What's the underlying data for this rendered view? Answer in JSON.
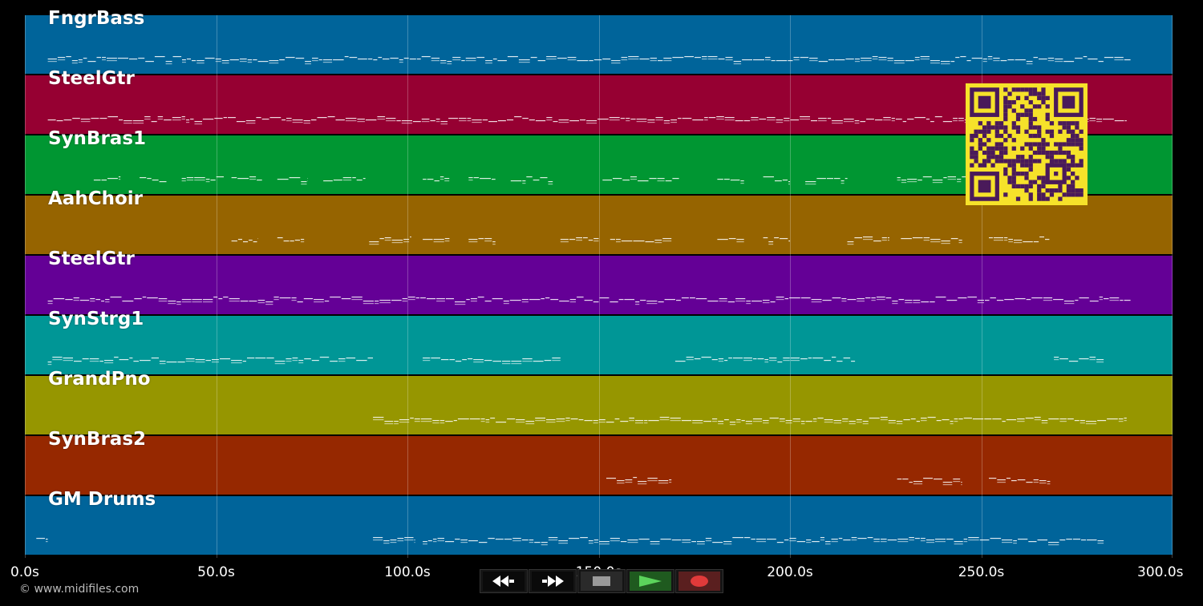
{
  "timeline": {
    "duration_seconds": 300,
    "ticks": [
      {
        "label": "0.0s",
        "value": 0
      },
      {
        "label": "50.0s",
        "value": 50
      },
      {
        "label": "100.0s",
        "value": 100
      },
      {
        "label": "150.0s",
        "value": 150
      },
      {
        "label": "200.0s",
        "value": 200
      },
      {
        "label": "250.0s",
        "value": 250
      },
      {
        "label": "300.0s",
        "value": 300
      }
    ]
  },
  "tracks": [
    {
      "name": "FngrBass",
      "color": "#00649a",
      "segments": [
        [
          6,
          289
        ]
      ]
    },
    {
      "name": "SteelGtr",
      "color": "#960032",
      "segments": [
        [
          6,
          288
        ]
      ]
    },
    {
      "name": "SynBras1",
      "color": "#009632",
      "segments": [
        [
          18,
          25
        ],
        [
          30,
          37
        ],
        [
          41,
          52
        ],
        [
          54,
          62
        ],
        [
          66,
          74
        ],
        [
          78,
          89
        ],
        [
          104,
          111
        ],
        [
          116,
          123
        ],
        [
          127,
          138
        ],
        [
          151,
          171
        ],
        [
          181,
          188
        ],
        [
          193,
          200
        ],
        [
          204,
          215
        ],
        [
          228,
          248
        ]
      ]
    },
    {
      "name": "AahChoir",
      "color": "#966400",
      "segments": [
        [
          54,
          61
        ],
        [
          66,
          73
        ],
        [
          90,
          101
        ],
        [
          104,
          111
        ],
        [
          116,
          123
        ],
        [
          140,
          150
        ],
        [
          153,
          169
        ],
        [
          181,
          188
        ],
        [
          193,
          200
        ],
        [
          215,
          226
        ],
        [
          229,
          245
        ],
        [
          252,
          268
        ]
      ]
    },
    {
      "name": "SteelGtr",
      "color": "#640096",
      "segments": [
        [
          6,
          289
        ]
      ]
    },
    {
      "name": "SynStrg1",
      "color": "#009696",
      "segments": [
        [
          6,
          91
        ],
        [
          104,
          140
        ],
        [
          170,
          217
        ],
        [
          269,
          282
        ]
      ]
    },
    {
      "name": "GrandPno",
      "color": "#969600",
      "segments": [
        [
          91,
          288
        ]
      ]
    },
    {
      "name": "SynBras2",
      "color": "#962800",
      "segments": [
        [
          152,
          169
        ],
        [
          228,
          245
        ],
        [
          252,
          268
        ]
      ]
    },
    {
      "name": "GM Drums",
      "color": "#00649a",
      "segments": [
        [
          3,
          6
        ],
        [
          91,
          102
        ],
        [
          104,
          282
        ]
      ]
    }
  ],
  "transport": {
    "buttons": [
      {
        "name": "rewind-button",
        "icon": "rewind-icon"
      },
      {
        "name": "fast-forward-button",
        "icon": "fast-forward-icon"
      },
      {
        "name": "stop-button",
        "icon": "stop-icon"
      },
      {
        "name": "play-button",
        "icon": "play-icon"
      },
      {
        "name": "record-button",
        "icon": "record-icon"
      }
    ]
  },
  "copyright": "© www.midifiles.com"
}
